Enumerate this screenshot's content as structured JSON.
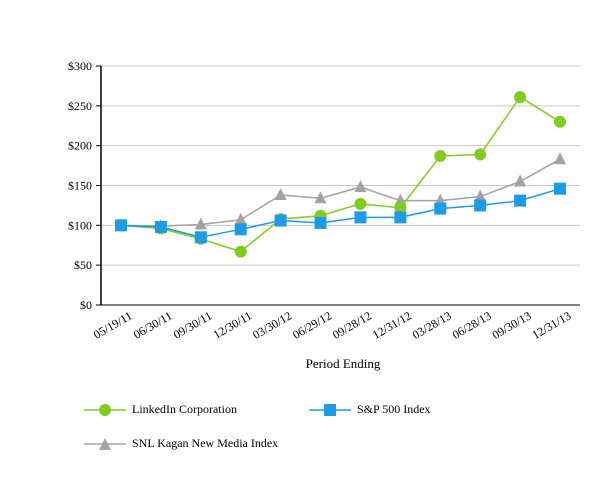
{
  "chart_data": {
    "type": "line",
    "title": "",
    "xlabel": "Period Ending",
    "ylabel": "",
    "ylim": [
      0,
      300
    ],
    "yticks": [
      0,
      50,
      100,
      150,
      200,
      250,
      300
    ],
    "ytick_labels": [
      "$0",
      "$50",
      "$100",
      "$150",
      "$200",
      "$250",
      "$300"
    ],
    "categories": [
      "05/19/11",
      "06/30/11",
      "09/30/11",
      "12/30/11",
      "03/30/12",
      "06/29/12",
      "09/28/12",
      "12/31/12",
      "03/28/13",
      "06/28/13",
      "09/30/13",
      "12/31/13"
    ],
    "series": [
      {
        "name": "LinkedIn Corporation",
        "color": "#80CC1F",
        "marker": "circle",
        "values": [
          100,
          96,
          83,
          67,
          108,
          112,
          127,
          122,
          187,
          189,
          261,
          230
        ]
      },
      {
        "name": "S&P 500 Index",
        "color": "#1E9BE6",
        "marker": "square",
        "values": [
          100,
          98,
          85,
          95,
          106,
          103,
          110,
          110,
          121,
          125,
          131,
          146
        ]
      },
      {
        "name": "SNL Kagan New Media Index",
        "color": "#A3A3A3",
        "marker": "triangle",
        "values": [
          100,
          99,
          101,
          107,
          138,
          134,
          148,
          131,
          131,
          136,
          155,
          183
        ]
      }
    ],
    "legend_placement": "bottom"
  }
}
